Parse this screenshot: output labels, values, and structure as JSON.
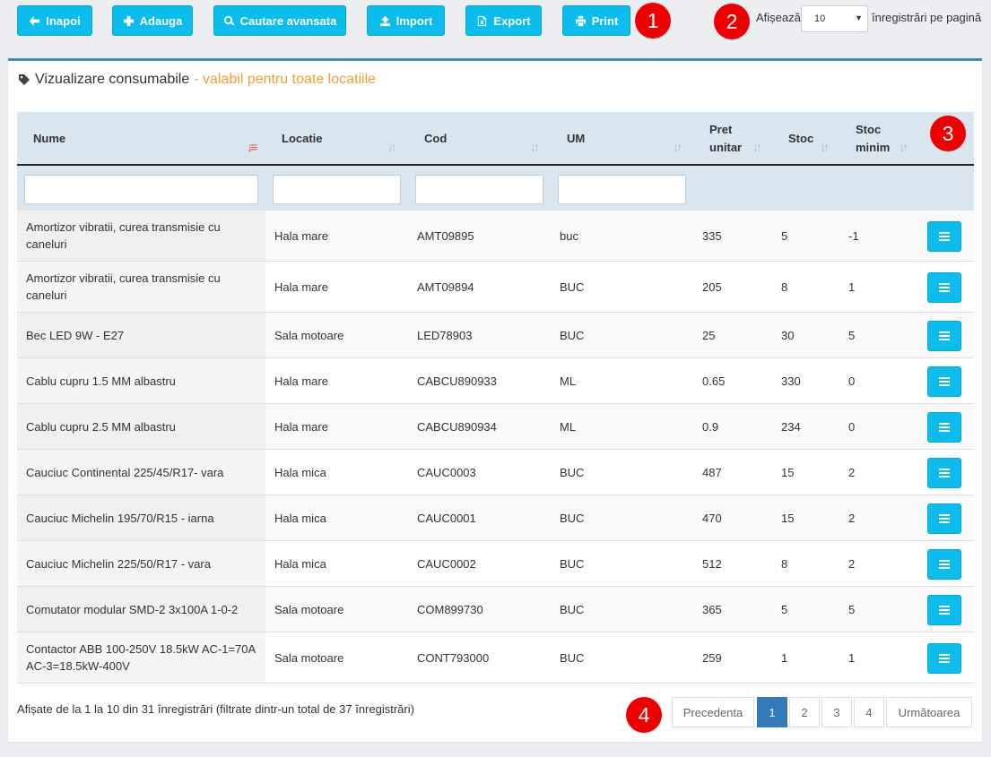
{
  "toolbar": {
    "back_label": "Inapoi",
    "add_label": "Adauga",
    "advanced_search_label": "Cautare avansata",
    "import_label": "Import",
    "export_label": "Export",
    "print_label": "Print",
    "show_label": "Afișează",
    "per_page_value": "10",
    "per_page_suffix": "înregistrări pe pagină"
  },
  "badges": [
    "1",
    "2",
    "3",
    "4"
  ],
  "panel": {
    "title": "Vizualizare consumabile",
    "subtitle": "- valabil pentru toate locatiile"
  },
  "table": {
    "columns": [
      "Nume",
      "Locatie",
      "Cod",
      "UM",
      "Pret unitar",
      "Stoc",
      "Stoc minim"
    ],
    "rows": [
      [
        "Amortizor vibratii, curea transmisie cu caneluri",
        "Hala mare",
        "AMT09895",
        "buc",
        "335",
        "5",
        "-1"
      ],
      [
        "Amortizor vibratii, curea transmisie cu caneluri",
        "Hala mare",
        "AMT09894",
        "BUC",
        "205",
        "8",
        "1"
      ],
      [
        "Bec LED 9W - E27",
        "Sala motoare",
        "LED78903",
        "BUC",
        "25",
        "30",
        "5"
      ],
      [
        "Cablu cupru 1.5 MM albastru",
        "Hala mare",
        "CABCU890933",
        "ML",
        "0.65",
        "330",
        "0"
      ],
      [
        "Cablu cupru 2.5 MM albastru",
        "Hala mare",
        "CABCU890934",
        "ML",
        "0.9",
        "234",
        "0"
      ],
      [
        "Cauciuc Continental 225/45/R17- vara",
        "Hala mica",
        "CAUC0003",
        "BUC",
        "487",
        "15",
        "2"
      ],
      [
        "Cauciuc Michelin 195/70/R15 - iarna",
        "Hala mica",
        "CAUC0001",
        "BUC",
        "470",
        "15",
        "2"
      ],
      [
        "Cauciuc Michelin 225/50/R17 - vara",
        "Hala mica",
        "CAUC0002",
        "BUC",
        "512",
        "8",
        "2"
      ],
      [
        "Comutator modular SMD-2 3x100A 1-0-2",
        "Sala motoare",
        "COM899730",
        "BUC",
        "365",
        "5",
        "5"
      ],
      [
        "Contactor ABB 100-250V 18.5kW AC-1=70A AC-3=18.5kW-400V",
        "Sala motoare",
        "CONT793000",
        "BUC",
        "259",
        "1",
        "1"
      ]
    ]
  },
  "footer": {
    "info": "Afișate de la 1 la 10 din 31 înregistrări (filtrate dintr-un total de 37 înregistrări)",
    "prev_label": "Precedenta",
    "pages": [
      "1",
      "2",
      "3",
      "4"
    ],
    "next_label": "Următoarea"
  }
}
